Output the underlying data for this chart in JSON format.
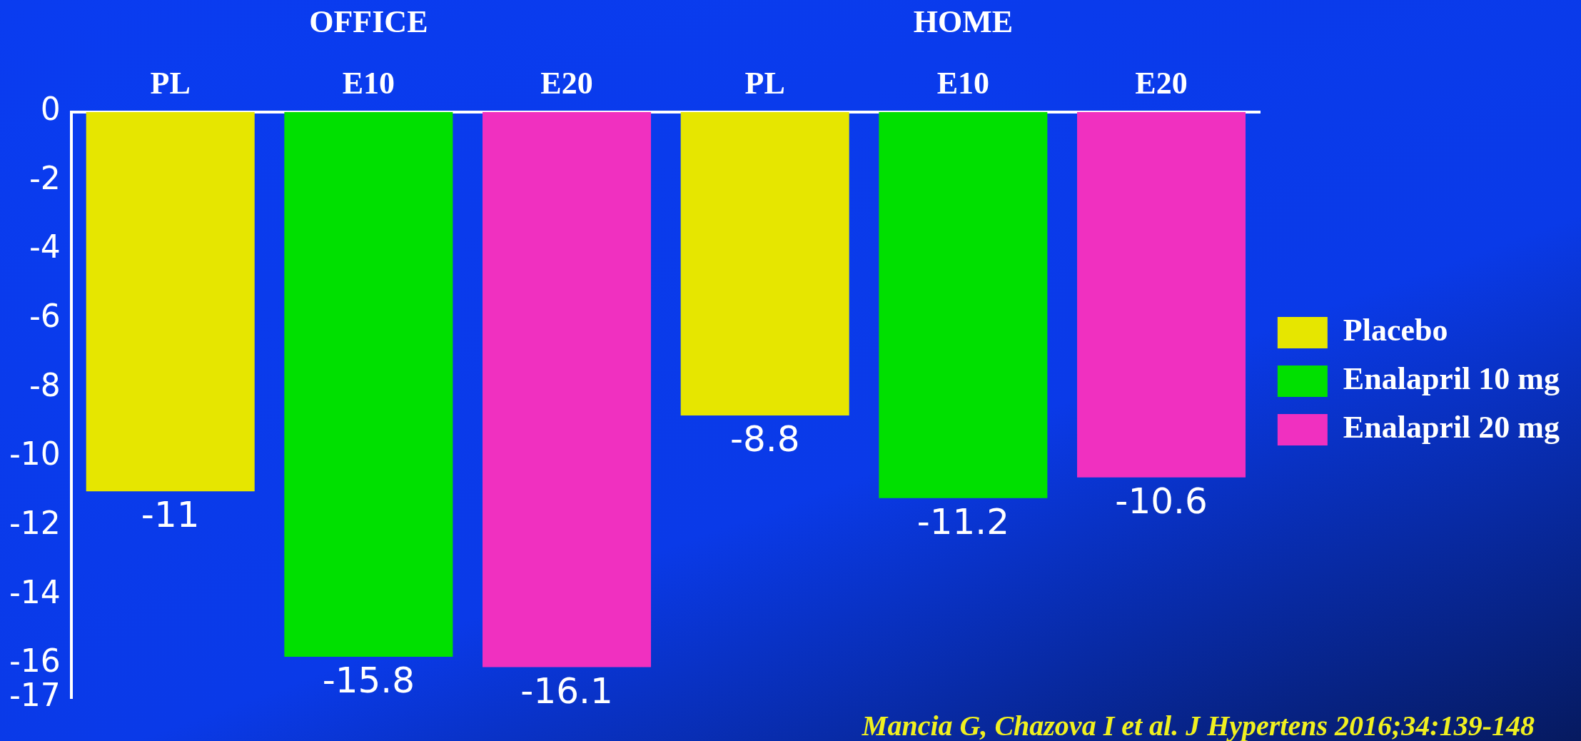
{
  "chart_data": {
    "type": "bar",
    "categories": [
      "PL",
      "E10",
      "E20",
      "PL",
      "E10",
      "E20"
    ],
    "stacked": true,
    "series": [
      {
        "name": "Placebo",
        "color": "#e6e600",
        "values": [
          -11,
          null,
          null,
          -8.8,
          null,
          null
        ]
      },
      {
        "name": "Enalapril 10 mg",
        "color": "#00e000",
        "values": [
          null,
          -15.8,
          null,
          null,
          -11.2,
          null
        ]
      },
      {
        "name": "Enalapril 20 mg",
        "color": "#f030c0",
        "values": [
          null,
          null,
          -16.1,
          null,
          null,
          -10.6
        ]
      }
    ],
    "ylim": [
      -17,
      0
    ],
    "yticks": [
      0,
      -2,
      -4,
      -6,
      -8,
      -10,
      -12,
      -14,
      -16,
      -17
    ],
    "grid": false,
    "legend": "right",
    "data_labels": true,
    "annotations": [
      "OFFICE",
      "HOME",
      "Mancia G, Chazova I et al. J Hypertens 2016;34:139-148"
    ]
  }
}
